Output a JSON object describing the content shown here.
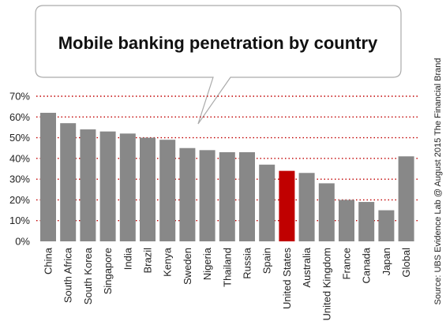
{
  "chart_data": {
    "type": "bar",
    "title": "Mobile banking penetration by country",
    "source": "Source: UBS Evidence Lab @ August 2015 The Financial Brand",
    "categories": [
      "China",
      "South Africa",
      "South Korea",
      "Singapore",
      "India",
      "Brazil",
      "Kenya",
      "Sweden",
      "Nigeria",
      "Thailand",
      "Russia",
      "Spain",
      "United States",
      "Australia",
      "United Kingdom",
      "France",
      "Canada",
      "Japan",
      "Global"
    ],
    "values": [
      62,
      57,
      54,
      53,
      52,
      50,
      49,
      45,
      44,
      43,
      43,
      37,
      34,
      33,
      28,
      20,
      19,
      15,
      41
    ],
    "highlight": "United States",
    "ylim": [
      0,
      70
    ],
    "yticks": [
      "0%",
      "10%",
      "20%",
      "30%",
      "40%",
      "50%",
      "60%",
      "70%"
    ],
    "grid": true,
    "colors": {
      "bar": "#888888",
      "highlight": "#c00000",
      "grid": "#c00000"
    }
  }
}
